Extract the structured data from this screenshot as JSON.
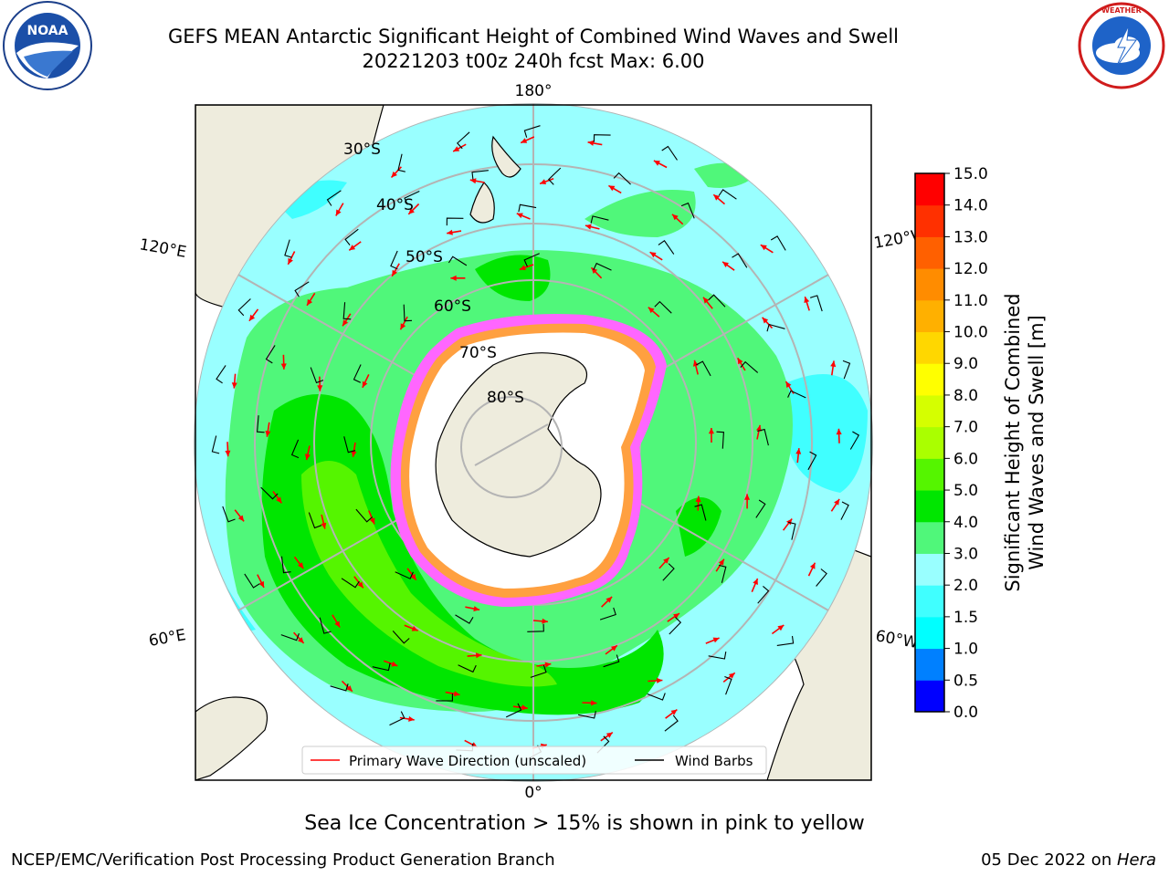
{
  "title_line1": "GEFS MEAN Antarctic Significant Height of Combined Wind Waves and Swell",
  "title_line2": "20221203 t00z 240h fcst   Max: 6.00",
  "logos": {
    "left": "NOAA",
    "right": "NATIONAL WEATHER SERVICE"
  },
  "map": {
    "projection": "south-polar-stereographic",
    "longitude_labels": [
      "180°",
      "120°E",
      "120°W",
      "60°E",
      "60°W",
      "0°"
    ],
    "latitude_labels": [
      "30°S",
      "40°S",
      "50°S",
      "60°S",
      "70°S",
      "80°S"
    ],
    "legend": {
      "wave_direction": "Primary Wave Direction (unscaled)",
      "wind_barbs": "Wind Barbs"
    },
    "colors": {
      "land": "#eeecdd",
      "sea_ice": "#ffffff",
      "wave_arrow": "#ff0000",
      "barb": "#000000"
    }
  },
  "colorbar": {
    "label_line1": "Significant Height of Combined",
    "label_line2": "Wind Waves and Swell [m]",
    "ticks": [
      "0.0",
      "0.5",
      "1.0",
      "1.5",
      "2.0",
      "3.0",
      "4.0",
      "5.0",
      "6.0",
      "7.0",
      "8.0",
      "9.0",
      "10.0",
      "11.0",
      "12.0",
      "13.0",
      "14.0",
      "15.0"
    ],
    "colors": [
      "#0000ff",
      "#0080ff",
      "#00ffff",
      "#40ffff",
      "#99ffff",
      "#50f77a",
      "#00e600",
      "#55f500",
      "#aaff00",
      "#d5ff00",
      "#ffff00",
      "#ffd700",
      "#ffb000",
      "#ff8c00",
      "#ff6000",
      "#ff3000",
      "#ff0000"
    ]
  },
  "caption": "Sea Ice Concentration > 15% is shown in pink to yellow",
  "footer": {
    "left": "NCEP/EMC/Verification Post Processing Product Generation Branch",
    "date": "05 Dec 2022 on ",
    "host": "Hera"
  }
}
